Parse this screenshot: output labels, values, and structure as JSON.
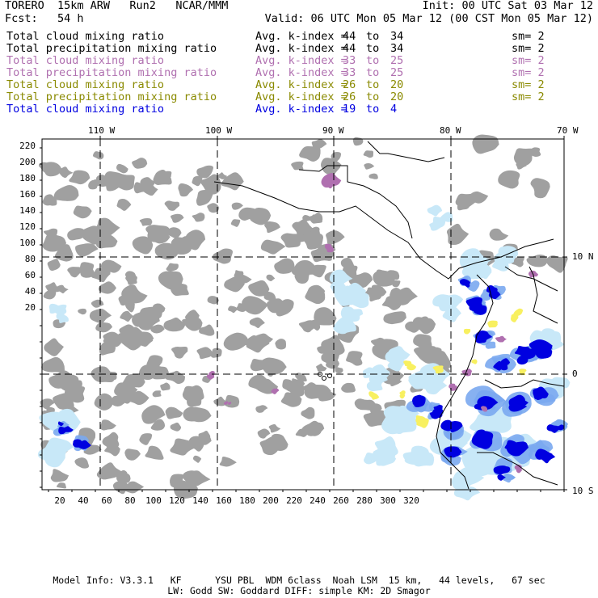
{
  "header": {
    "left1": "TORERO  15km ARW   Run2   NCAR/MMM",
    "left2": "Fcst:   54 h",
    "right1": "Init: 00 UTC Sat 03 Mar 12",
    "right2": "Valid: 06 UTC Mon 05 Mar 12 (00 CST Mon 05 Mar 12)"
  },
  "legend_rows": [
    {
      "name": "Total cloud mixing ratio",
      "avg": "Avg. k-index =",
      "lo": "44",
      "to": "to",
      "hi": "34",
      "sm": "sm= 2",
      "color": "#000000"
    },
    {
      "name": "Total precipitation mixing ratio",
      "avg": "Avg. k-index =",
      "lo": "44",
      "to": "to",
      "hi": "34",
      "sm": "sm= 2",
      "color": "#000000"
    },
    {
      "name": "Total cloud mixing ratio",
      "avg": "Avg. k-index =",
      "lo": "33",
      "to": "to",
      "hi": "25",
      "sm": "sm= 2",
      "color": "#b070b0"
    },
    {
      "name": "Total precipitation mixing ratio",
      "avg": "Avg. k-index =",
      "lo": "33",
      "to": "to",
      "hi": "25",
      "sm": "sm= 2",
      "color": "#b070b0"
    },
    {
      "name": "Total cloud mixing ratio",
      "avg": "Avg. k-index =",
      "lo": "26",
      "to": "to",
      "hi": "20",
      "sm": "sm= 2",
      "color": "#8a8a00"
    },
    {
      "name": "Total precipitation mixing ratio",
      "avg": "Avg. k-index =",
      "lo": "26",
      "to": "to",
      "hi": "20",
      "sm": "sm= 2",
      "color": "#8a8a00"
    },
    {
      "name": "Total cloud mixing ratio",
      "avg": "Avg. k-index =",
      "lo": "19",
      "to": "to",
      "hi": "4",
      "sm": "",
      "color": "#0000e0"
    }
  ],
  "map": {
    "lon_labels": [
      "110 W",
      "100 W",
      "90 W",
      "80 W",
      "70 W"
    ],
    "lat_labels": [
      "10 N",
      "0",
      "10 S"
    ],
    "y_ticks": [
      "220",
      "200",
      "180",
      "160",
      "140",
      "120",
      "100",
      "80",
      "60",
      "40",
      "20"
    ],
    "x_ticks": [
      "20",
      "40",
      "60",
      "80",
      "100",
      "120",
      "140",
      "160",
      "180",
      "200",
      "220",
      "240",
      "260",
      "280",
      "300",
      "320"
    ],
    "colors": {
      "gray": "#a0a0a0",
      "light_blue": "#c8e8f8",
      "mid_blue": "#7aa8f0",
      "blue": "#0000e0",
      "purple": "#b070b0",
      "yellow": "#f8f060"
    }
  },
  "footer": {
    "line1": "Model Info: V3.3.1   KF      YSU PBL  WDM 6class  Noah LSM  15 km,   44 levels,   67 sec",
    "line2": "LW: Godd SW: Goddard DIFF: simple KM: 2D Smagor"
  }
}
